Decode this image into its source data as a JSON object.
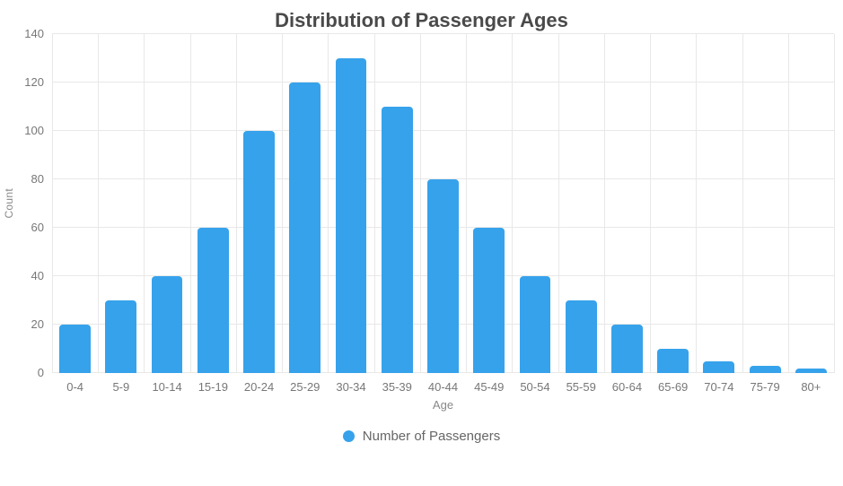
{
  "title": "Distribution of Passenger Ages",
  "legend": {
    "label": "Number of Passengers"
  },
  "colors": {
    "bar": "#36a2eb",
    "title": "#4a4a4a",
    "tick": "#777777",
    "grid": "#e8e8e8",
    "axis_label": "#888888"
  },
  "chart_data": {
    "type": "bar",
    "title": "Distribution of Passenger Ages",
    "series_name": "Number of Passengers",
    "categories": [
      "0-4",
      "5-9",
      "10-14",
      "15-19",
      "20-24",
      "25-29",
      "30-34",
      "35-39",
      "40-44",
      "45-49",
      "50-54",
      "55-59",
      "60-64",
      "65-69",
      "70-74",
      "75-79",
      "80+"
    ],
    "values": [
      20,
      30,
      40,
      60,
      100,
      120,
      130,
      110,
      80,
      60,
      40,
      30,
      20,
      10,
      5,
      3,
      2
    ],
    "xlabel": "Age",
    "ylabel": "Count",
    "ylim": [
      0,
      140
    ],
    "ytick_step": 20,
    "ytick_labels": [
      "0",
      "20",
      "40",
      "60",
      "80",
      "100",
      "120",
      "140"
    ],
    "grid": true,
    "legend_position": "bottom"
  }
}
